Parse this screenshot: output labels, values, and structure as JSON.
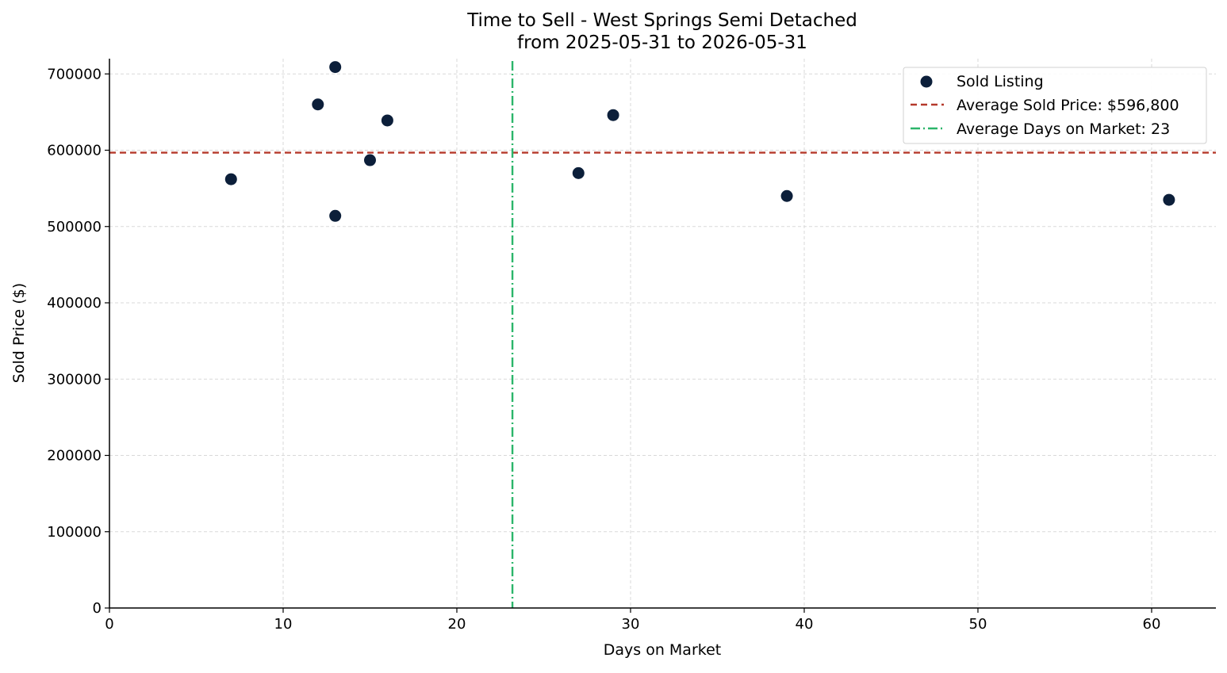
{
  "chart_data": {
    "type": "scatter",
    "title": "Time to Sell - West Springs Semi Detached",
    "subtitle": "from 2025-05-31 to 2026-05-31",
    "xlabel": "Days on Market",
    "ylabel": "Sold Price ($)",
    "xlim": [
      0,
      63.7
    ],
    "ylim": [
      0,
      720000
    ],
    "x_ticks": [
      0,
      10,
      20,
      30,
      40,
      50,
      60
    ],
    "y_ticks": [
      0,
      100000,
      200000,
      300000,
      400000,
      500000,
      600000,
      700000
    ],
    "grid": true,
    "legend_position": "top-right",
    "colors": {
      "points": "#0c1f3a",
      "average_price_line": "#b5392b",
      "average_days_line": "#2bb56a"
    },
    "series": [
      {
        "name": "Sold Listing",
        "points": [
          {
            "x": 7,
            "y": 562000
          },
          {
            "x": 12,
            "y": 660000
          },
          {
            "x": 13,
            "y": 709000
          },
          {
            "x": 13,
            "y": 514000
          },
          {
            "x": 15,
            "y": 587000
          },
          {
            "x": 16,
            "y": 639000
          },
          {
            "x": 27,
            "y": 570000
          },
          {
            "x": 29,
            "y": 646000
          },
          {
            "x": 39,
            "y": 540000
          },
          {
            "x": 61,
            "y": 535000
          }
        ]
      }
    ],
    "reference_lines": [
      {
        "name": "Average Sold Price: $596,800",
        "orientation": "horizontal",
        "value": 596800,
        "style": "dashed"
      },
      {
        "name": "Average Days on Market: 23",
        "orientation": "vertical",
        "value": 23.2,
        "style": "dashdot"
      }
    ]
  }
}
